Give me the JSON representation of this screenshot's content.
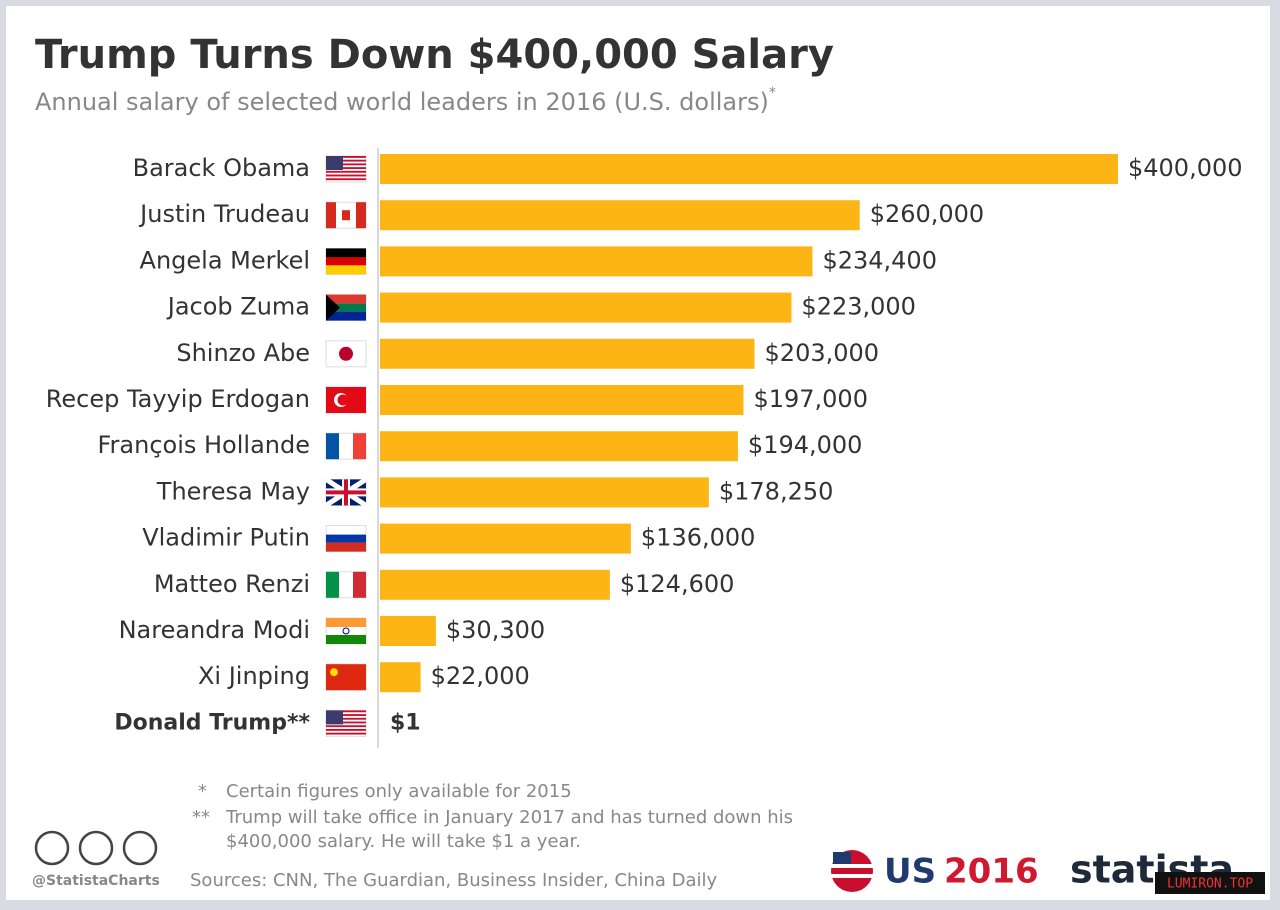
{
  "chart_data": {
    "type": "bar",
    "orientation": "horizontal",
    "title": "Trump Turns Down $400,000 Salary",
    "subtitle": "Annual salary of selected world leaders in 2016 (U.S. dollars)",
    "subtitle_mark": "*",
    "categories": [
      "Barack Obama",
      "Justin Trudeau",
      "Angela Merkel",
      "Jacob Zuma",
      "Shinzo Abe",
      "Recep Tayyip Erdogan",
      "François Hollande",
      "Theresa May",
      "Vladimir Putin",
      "Matteo Renzi",
      "Nareandra Modi",
      "Xi Jinping",
      "Donald Trump**"
    ],
    "values": [
      400000,
      260000,
      234400,
      223000,
      203000,
      197000,
      194000,
      178250,
      136000,
      124600,
      30300,
      22000,
      1
    ],
    "value_labels": [
      "$400,000",
      "$260,000",
      "$234,400",
      "$223,000",
      "$203,000",
      "$197,000",
      "$194,000",
      "$178,250",
      "$136,000",
      "$124,600",
      "$30,300",
      "$22,000",
      "$1"
    ],
    "color": "#fdb515"
  },
  "footnotes": [
    {
      "mark": "*",
      "text": "Certain figures only available for 2015"
    },
    {
      "mark": "**",
      "text": "Trump will take office in January 2017 and has turned down his $400,000 salary. He will take $1 a year."
    }
  ],
  "handle": "@StatistaCharts",
  "sources": "Sources: CNN, The Guardian, Business Insider, China Daily",
  "badge": {
    "country": "US",
    "year": "2016"
  },
  "brand": "statista",
  "watermark": "LUMIRON.TOP"
}
